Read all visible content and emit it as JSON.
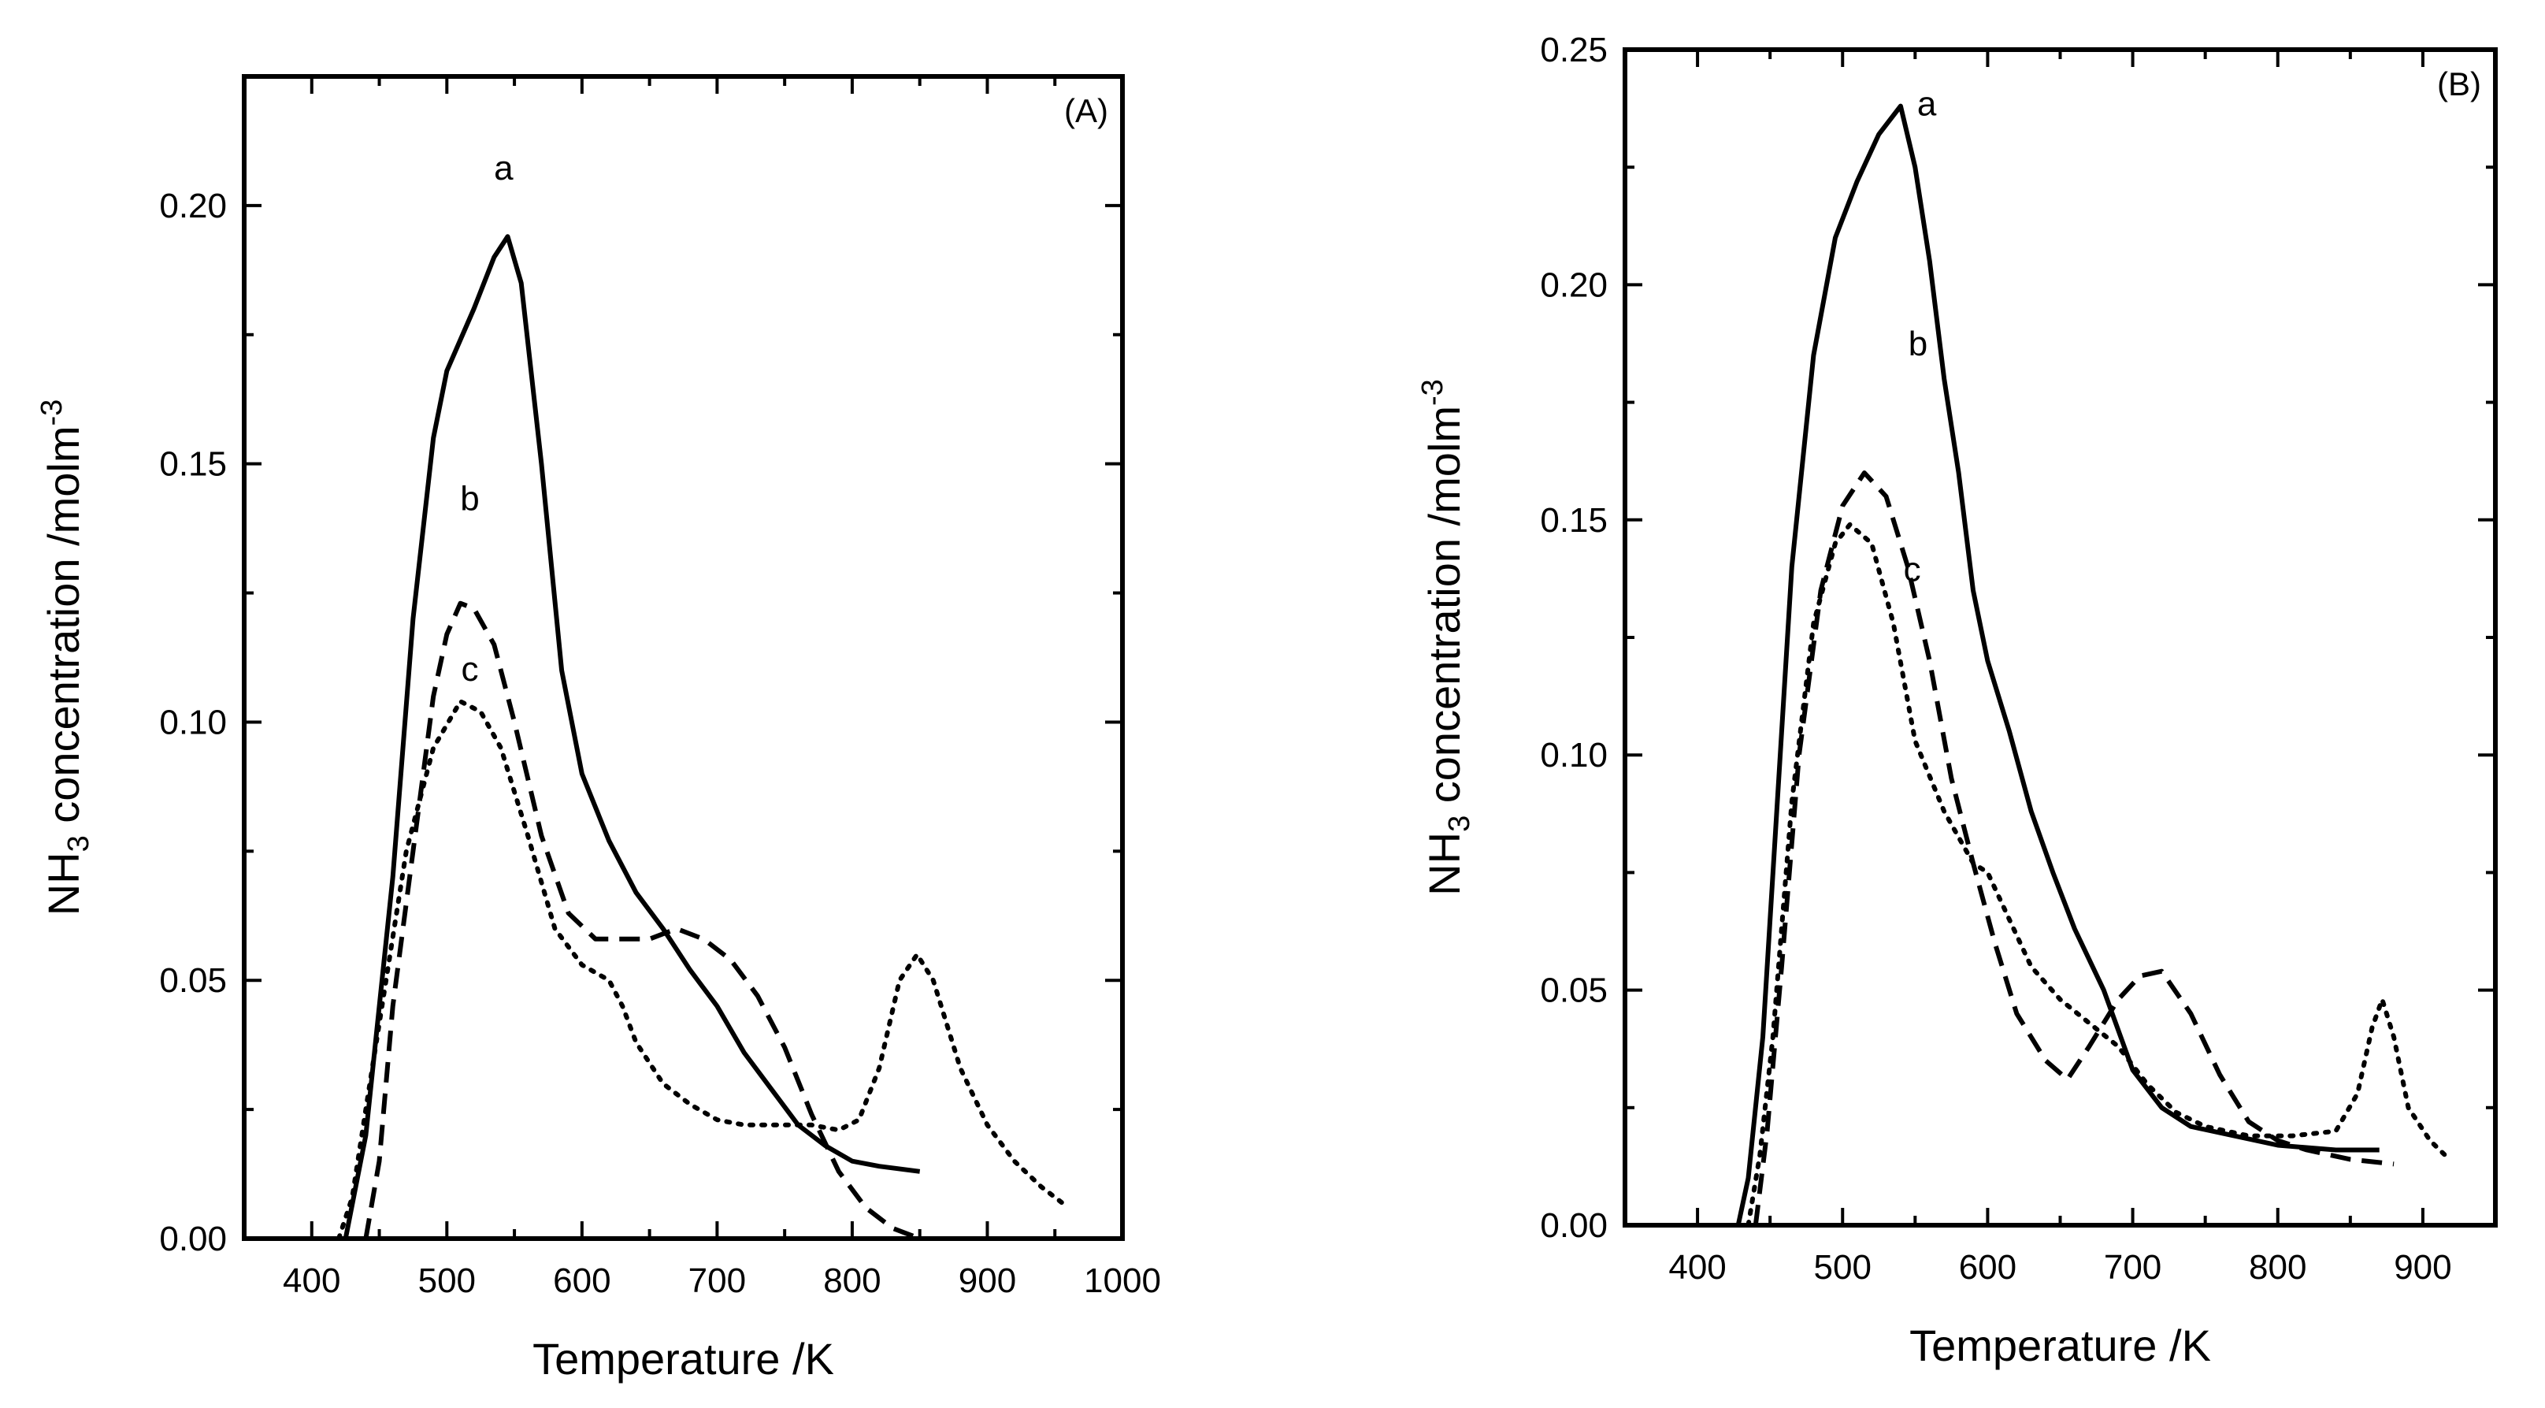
{
  "chart_data": [
    {
      "type": "line",
      "panel_label": "(A)",
      "xlabel": "Temperature /K",
      "ylabel_main": "NH",
      "ylabel_sub": "3",
      "ylabel_rest": " concentration /molm",
      "ylabel_sup": "-3",
      "xlim": [
        350,
        1000
      ],
      "ylim": [
        0,
        0.225
      ],
      "xticks": [
        400,
        500,
        600,
        700,
        800,
        900,
        1000
      ],
      "yticks": [
        0.0,
        0.05,
        0.1,
        0.15,
        0.2
      ],
      "xtick_labels": [
        "400",
        "500",
        "600",
        "700",
        "800",
        "900",
        "1000"
      ],
      "ytick_labels": [
        "0.00",
        "0.05",
        "0.10",
        "0.15",
        "0.20"
      ],
      "annotations": [
        {
          "text": "a",
          "x": 542,
          "y": 0.205
        },
        {
          "text": "b",
          "x": 517,
          "y": 0.141
        },
        {
          "text": "c",
          "x": 517,
          "y": 0.108
        }
      ],
      "series": [
        {
          "name": "a",
          "style": "solid",
          "points": [
            [
              425,
              0
            ],
            [
              440,
              0.02
            ],
            [
              460,
              0.07
            ],
            [
              475,
              0.12
            ],
            [
              490,
              0.155
            ],
            [
              500,
              0.168
            ],
            [
              520,
              0.18
            ],
            [
              535,
              0.19
            ],
            [
              545,
              0.194
            ],
            [
              555,
              0.185
            ],
            [
              570,
              0.15
            ],
            [
              585,
              0.11
            ],
            [
              600,
              0.09
            ],
            [
              620,
              0.077
            ],
            [
              640,
              0.067
            ],
            [
              660,
              0.06
            ],
            [
              680,
              0.052
            ],
            [
              700,
              0.045
            ],
            [
              720,
              0.036
            ],
            [
              740,
              0.029
            ],
            [
              760,
              0.022
            ],
            [
              780,
              0.018
            ],
            [
              800,
              0.015
            ],
            [
              820,
              0.014
            ],
            [
              850,
              0.013
            ]
          ]
        },
        {
          "name": "b",
          "style": "dashed",
          "points": [
            [
              440,
              0
            ],
            [
              450,
              0.015
            ],
            [
              460,
              0.045
            ],
            [
              475,
              0.075
            ],
            [
              490,
              0.105
            ],
            [
              500,
              0.117
            ],
            [
              510,
              0.123
            ],
            [
              520,
              0.122
            ],
            [
              535,
              0.115
            ],
            [
              550,
              0.1
            ],
            [
              570,
              0.078
            ],
            [
              590,
              0.063
            ],
            [
              610,
              0.058
            ],
            [
              630,
              0.058
            ],
            [
              650,
              0.058
            ],
            [
              670,
              0.06
            ],
            [
              690,
              0.058
            ],
            [
              710,
              0.054
            ],
            [
              730,
              0.047
            ],
            [
              750,
              0.037
            ],
            [
              770,
              0.024
            ],
            [
              790,
              0.013
            ],
            [
              810,
              0.006
            ],
            [
              830,
              0.002
            ],
            [
              850,
              0
            ]
          ]
        },
        {
          "name": "c",
          "style": "dotted",
          "points": [
            [
              420,
              0
            ],
            [
              430,
              0.008
            ],
            [
              440,
              0.025
            ],
            [
              455,
              0.05
            ],
            [
              470,
              0.075
            ],
            [
              490,
              0.095
            ],
            [
              510,
              0.104
            ],
            [
              525,
              0.102
            ],
            [
              540,
              0.095
            ],
            [
              560,
              0.078
            ],
            [
              580,
              0.06
            ],
            [
              600,
              0.053
            ],
            [
              620,
              0.05
            ],
            [
              630,
              0.045
            ],
            [
              640,
              0.038
            ],
            [
              660,
              0.03
            ],
            [
              680,
              0.026
            ],
            [
              700,
              0.023
            ],
            [
              720,
              0.022
            ],
            [
              750,
              0.022
            ],
            [
              770,
              0.022
            ],
            [
              790,
              0.021
            ],
            [
              805,
              0.023
            ],
            [
              820,
              0.033
            ],
            [
              835,
              0.05
            ],
            [
              848,
              0.055
            ],
            [
              860,
              0.05
            ],
            [
              880,
              0.033
            ],
            [
              900,
              0.022
            ],
            [
              920,
              0.015
            ],
            [
              940,
              0.01
            ],
            [
              955,
              0.007
            ]
          ]
        }
      ]
    },
    {
      "type": "line",
      "panel_label": "(B)",
      "xlabel": "Temperature /K",
      "ylabel_main": "NH",
      "ylabel_sub": "3",
      "ylabel_rest": " concentration /molm",
      "ylabel_sup": "-3",
      "xlim": [
        350,
        950
      ],
      "ylim": [
        0,
        0.25
      ],
      "xticks": [
        400,
        500,
        600,
        700,
        800,
        900
      ],
      "yticks": [
        0.0,
        0.05,
        0.1,
        0.15,
        0.2,
        0.25
      ],
      "xtick_labels": [
        "400",
        "500",
        "600",
        "700",
        "800",
        "900"
      ],
      "ytick_labels": [
        "0.00",
        "0.05",
        "0.10",
        "0.15",
        "0.20",
        "0.25"
      ],
      "annotations": [
        {
          "text": "a",
          "x": 558,
          "y": 0.236
        },
        {
          "text": "b",
          "x": 552,
          "y": 0.185
        },
        {
          "text": "c",
          "x": 548,
          "y": 0.137
        }
      ],
      "series": [
        {
          "name": "a",
          "style": "solid",
          "points": [
            [
              428,
              0
            ],
            [
              435,
              0.01
            ],
            [
              445,
              0.04
            ],
            [
              455,
              0.09
            ],
            [
              465,
              0.14
            ],
            [
              480,
              0.185
            ],
            [
              495,
              0.21
            ],
            [
              510,
              0.222
            ],
            [
              525,
              0.232
            ],
            [
              540,
              0.238
            ],
            [
              550,
              0.225
            ],
            [
              560,
              0.205
            ],
            [
              570,
              0.18
            ],
            [
              580,
              0.16
            ],
            [
              590,
              0.135
            ],
            [
              600,
              0.12
            ],
            [
              615,
              0.105
            ],
            [
              630,
              0.088
            ],
            [
              645,
              0.075
            ],
            [
              660,
              0.063
            ],
            [
              680,
              0.05
            ],
            [
              700,
              0.033
            ],
            [
              720,
              0.025
            ],
            [
              740,
              0.021
            ],
            [
              770,
              0.019
            ],
            [
              800,
              0.017
            ],
            [
              840,
              0.016
            ],
            [
              870,
              0.016
            ]
          ]
        },
        {
          "name": "b",
          "style": "dashed",
          "points": [
            [
              440,
              0
            ],
            [
              448,
              0.02
            ],
            [
              458,
              0.055
            ],
            [
              470,
              0.1
            ],
            [
              485,
              0.135
            ],
            [
              500,
              0.153
            ],
            [
              515,
              0.16
            ],
            [
              530,
              0.155
            ],
            [
              545,
              0.14
            ],
            [
              560,
              0.12
            ],
            [
              575,
              0.095
            ],
            [
              590,
              0.077
            ],
            [
              605,
              0.06
            ],
            [
              620,
              0.045
            ],
            [
              640,
              0.035
            ],
            [
              655,
              0.031
            ],
            [
              670,
              0.038
            ],
            [
              690,
              0.048
            ],
            [
              705,
              0.053
            ],
            [
              720,
              0.054
            ],
            [
              740,
              0.045
            ],
            [
              760,
              0.032
            ],
            [
              780,
              0.022
            ],
            [
              800,
              0.018
            ],
            [
              820,
              0.016
            ],
            [
              850,
              0.014
            ],
            [
              880,
              0.013
            ]
          ]
        },
        {
          "name": "c",
          "style": "dotted",
          "points": [
            [
              435,
              0
            ],
            [
              443,
              0.015
            ],
            [
              452,
              0.04
            ],
            [
              465,
              0.09
            ],
            [
              480,
              0.128
            ],
            [
              495,
              0.145
            ],
            [
              505,
              0.149
            ],
            [
              520,
              0.145
            ],
            [
              535,
              0.128
            ],
            [
              550,
              0.103
            ],
            [
              570,
              0.088
            ],
            [
              590,
              0.077
            ],
            [
              600,
              0.075
            ],
            [
              615,
              0.065
            ],
            [
              630,
              0.055
            ],
            [
              650,
              0.048
            ],
            [
              670,
              0.043
            ],
            [
              690,
              0.038
            ],
            [
              710,
              0.03
            ],
            [
              730,
              0.024
            ],
            [
              750,
              0.021
            ],
            [
              780,
              0.019
            ],
            [
              810,
              0.019
            ],
            [
              840,
              0.02
            ],
            [
              855,
              0.028
            ],
            [
              865,
              0.042
            ],
            [
              872,
              0.048
            ],
            [
              880,
              0.04
            ],
            [
              890,
              0.025
            ],
            [
              905,
              0.018
            ],
            [
              915,
              0.015
            ]
          ]
        }
      ]
    }
  ]
}
